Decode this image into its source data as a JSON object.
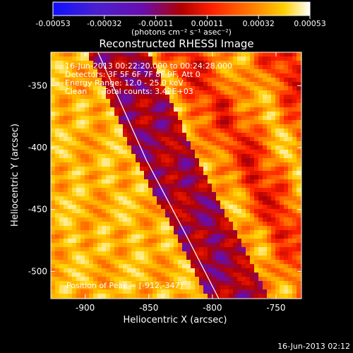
{
  "chart_data": {
    "type": "heatmap",
    "title": "Reconstructed RHESSI Image",
    "xlabel": "Heliocentric X (arcsec)",
    "ylabel": "Heliocentric Y (arcsec)",
    "xlim": [
      -927,
      -730
    ],
    "ylim": [
      -522,
      -323
    ],
    "x_ticks": [
      -900,
      -850,
      -800,
      -750
    ],
    "y_ticks": [
      -350,
      -400,
      -450,
      -500
    ],
    "colorbar": {
      "ticks": [
        "-0.00053",
        "-0.00032",
        "-0.00011",
        "0.00011",
        "0.00032",
        "0.00053"
      ],
      "unit_label": "(photons cm⁻² s⁻¹ asec⁻²)",
      "range": [
        -0.00053,
        0.00053
      ],
      "colors": [
        "#1010ff",
        "#6a0dad",
        "#b00000",
        "#ff2000",
        "#ff8000",
        "#ffd000",
        "#ffffff"
      ]
    },
    "annotations": {
      "time_range": "16-Jun-2013 00:22:20.000 to 00:24:28.000",
      "detectors": "Detectors: 3F 5F 6F 7F 8F 9F, Att 0",
      "energy": "Energy Range: 12.0 - 25.0 keV",
      "method": "Clean",
      "counts": "Total counts: 3.42E+03",
      "peak": "Position of Peak = [-912,-347]"
    },
    "limb": {
      "x": [
        -890,
        -852,
        -821,
        -795
      ],
      "y": [
        -323,
        -410,
        -470,
        -522
      ]
    },
    "peak_position": [
      -912,
      -347
    ]
  },
  "footer": {
    "timestamp": "16-Jun-2013 02:12"
  }
}
